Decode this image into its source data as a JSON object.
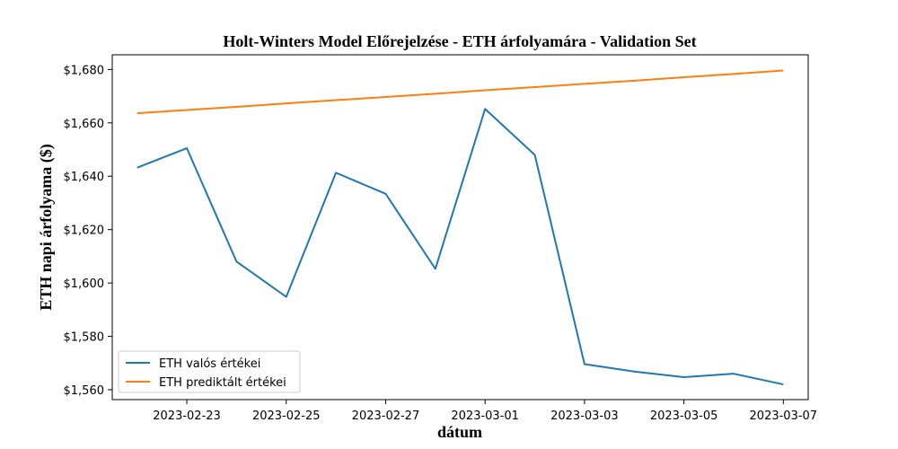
{
  "chart_data": {
    "type": "line",
    "title": "Holt-Winters Model Előrejelzése - ETH árfolyamára - Validation Set",
    "xlabel": "dátum",
    "ylabel": "ETH napi árfolyama ($)",
    "x": [
      "2023-02-22",
      "2023-02-23",
      "2023-02-24",
      "2023-02-25",
      "2023-02-26",
      "2023-02-27",
      "2023-02-28",
      "2023-03-01",
      "2023-03-02",
      "2023-03-03",
      "2023-03-04",
      "2023-03-05",
      "2023-03-06",
      "2023-03-07"
    ],
    "series": [
      {
        "name": "ETH valós értékei",
        "color": "#1f77b4",
        "values": [
          1643.2,
          1650.5,
          1608.0,
          1594.8,
          1641.3,
          1633.4,
          1605.3,
          1665.2,
          1648.0,
          1569.6,
          1566.8,
          1564.7,
          1566.0,
          1562.0
        ]
      },
      {
        "name": "ETH prediktált értékei",
        "color": "#ff7f0e",
        "values": [
          1663.6,
          1664.8,
          1666.0,
          1667.3,
          1668.5,
          1669.7,
          1670.9,
          1672.2,
          1673.4,
          1674.6,
          1675.8,
          1677.1,
          1678.3,
          1679.6
        ]
      }
    ],
    "x_ticks": [
      "2023-02-23",
      "2023-02-25",
      "2023-02-27",
      "2023-03-01",
      "2023-03-03",
      "2023-03-05",
      "2023-03-07"
    ],
    "y_ticks": [
      1560,
      1580,
      1600,
      1620,
      1640,
      1660,
      1680
    ],
    "y_tick_labels": [
      "$1,560",
      "$1,580",
      "$1,600",
      "$1,620",
      "$1,640",
      "$1,660",
      "$1,680"
    ],
    "xlim": [
      "2023-02-21T12:00",
      "2023-03-07T12:00"
    ],
    "ylim": [
      1556.3,
      1685.5
    ],
    "grid": false,
    "legend_position": "lower-left"
  }
}
